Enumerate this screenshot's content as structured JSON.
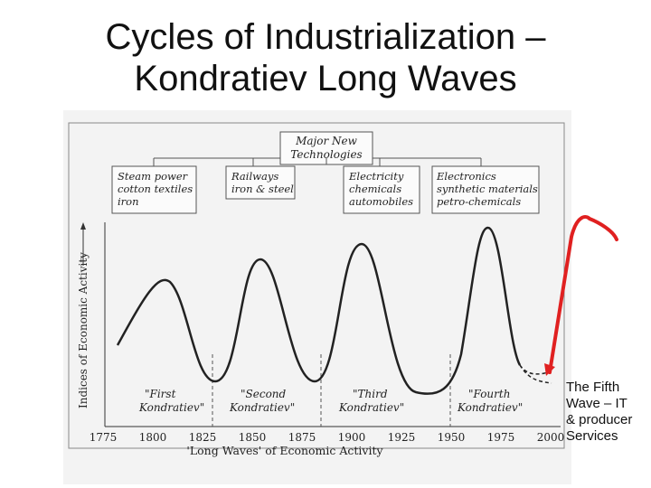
{
  "title": {
    "line1": "Cycles of Industrialization –",
    "line2": "Kondratiev Long Waves"
  },
  "diagram": {
    "header": [
      "Major New",
      "Technologies"
    ],
    "technology_boxes": [
      {
        "lines": [
          "Steam power",
          "cotton textiles",
          "iron"
        ]
      },
      {
        "lines": [
          "Railways",
          "iron & steel"
        ]
      },
      {
        "lines": [
          "Electricity",
          "chemicals",
          "automobiles"
        ]
      },
      {
        "lines": [
          "Electronics",
          "synthetic materials",
          "petro-chemicals"
        ]
      }
    ],
    "wave_labels": [
      {
        "line1": "\"First",
        "line2": "Kondratiev\""
      },
      {
        "line1": "\"Second",
        "line2": "Kondratiev\""
      },
      {
        "line1": "\"Third",
        "line2": "Kondratiev\""
      },
      {
        "line1": "\"Fourth",
        "line2": "Kondratiev\""
      }
    ],
    "y_axis_label": "Indices of Economic Activity",
    "x_axis_label": "'Long Waves' of Economic Activity",
    "x_ticks": [
      "1775",
      "1800",
      "1825",
      "1850",
      "1875",
      "1900",
      "1925",
      "1950",
      "1975",
      "2000"
    ]
  },
  "callout": {
    "lines": [
      "The Fifth",
      "Wave – IT",
      "& producer",
      "Services"
    ],
    "color": "#e02020"
  }
}
